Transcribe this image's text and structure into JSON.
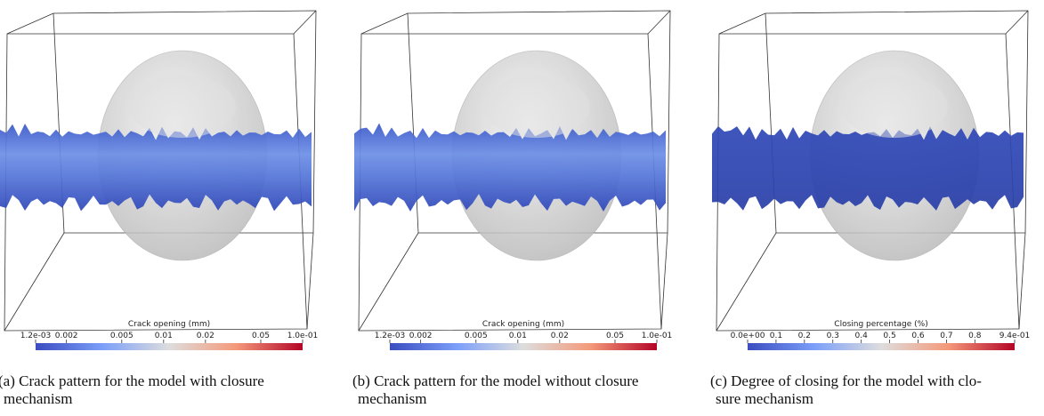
{
  "panels": [
    {
      "caption": [
        "(a) Crack pattern for the model with closure",
        "mechanism"
      ],
      "colorbar": {
        "title": "Crack opening (mm)",
        "scale": "log",
        "range": [
          {
            "value": 0.0012,
            "label": "1.2e-03"
          },
          {
            "value": 0.1,
            "label": "1.0e-01"
          }
        ],
        "ticks": [
          0.002,
          0.005,
          0.01,
          0.02,
          0.05
        ]
      }
    },
    {
      "caption": [
        "(b) Crack pattern for the model without closure",
        "mechanism"
      ],
      "colorbar": {
        "title": "Crack opening (mm)",
        "scale": "log",
        "range": [
          {
            "value": 0.0012,
            "label": "1.2e-03"
          },
          {
            "value": 0.1,
            "label": "1.0e-01"
          }
        ],
        "ticks": [
          0.002,
          0.005,
          0.01,
          0.02,
          0.05
        ]
      }
    },
    {
      "caption": [
        "(c) Degree of closing for the model with clo-",
        "sure mechanism"
      ],
      "colorbar": {
        "title": "Closing percentage (%)",
        "scale": "linear",
        "range": [
          {
            "value": 0,
            "label": "0.0e+00"
          },
          {
            "value": 0.94,
            "label": "9.4e-01"
          }
        ],
        "ticks": [
          0.1,
          0.2,
          0.3,
          0.4,
          0.5,
          0.6,
          0.7,
          0.8
        ]
      }
    }
  ]
}
